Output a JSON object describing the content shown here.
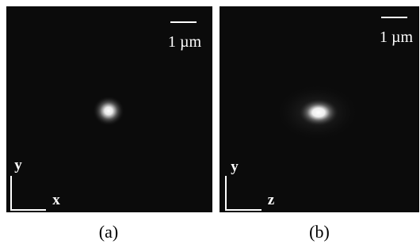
{
  "panels": [
    {
      "caption": "(a)",
      "scale_bar": "1 µm",
      "vertical_axis": "y",
      "horizontal_axis": "x"
    },
    {
      "caption": "(b)",
      "scale_bar": "1 µm",
      "vertical_axis": "y",
      "horizontal_axis": "z"
    }
  ]
}
